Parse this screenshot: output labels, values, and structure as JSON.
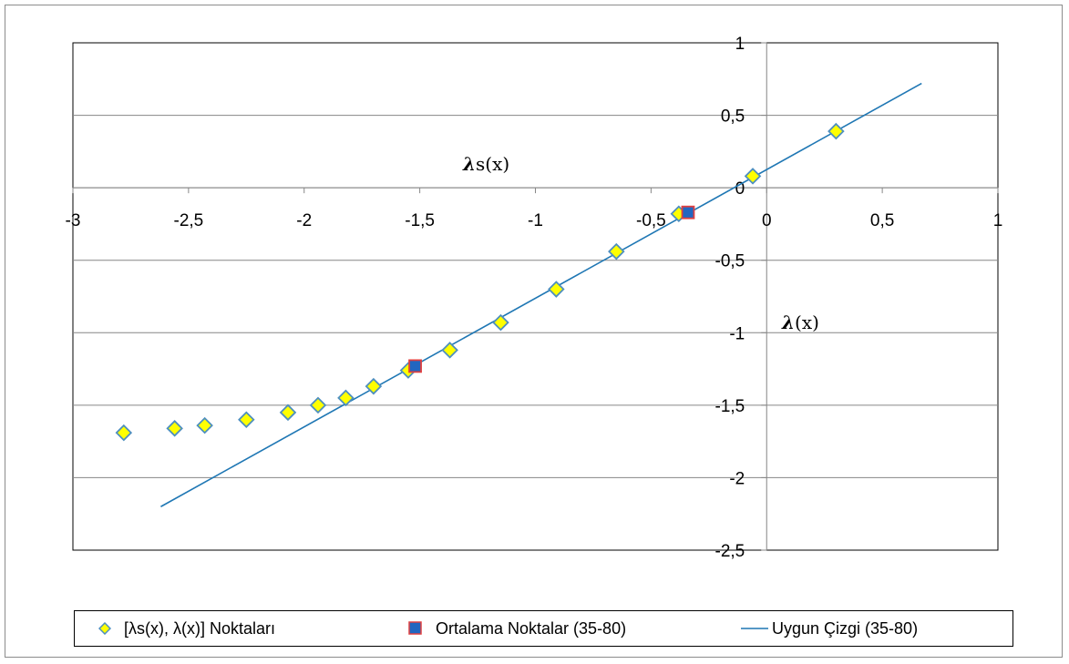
{
  "chart_data": {
    "type": "scatter",
    "title": "",
    "xlabel": "𝝀(x)",
    "ylabel": "𝝀s(x)",
    "xlim": [
      -3,
      1
    ],
    "ylim": [
      -2.5,
      1
    ],
    "x_ticks": [
      "-3",
      "-2,5",
      "-2",
      "-1,5",
      "-1",
      "-0,5",
      "0",
      "0,5",
      "1"
    ],
    "y_ticks": [
      "1",
      "0,5",
      "0",
      "-0,5",
      "-1",
      "-1,5",
      "-2",
      "-2,5"
    ],
    "grid": "horizontal",
    "legend_position": "bottom",
    "colors": {
      "points": "#ffff00",
      "points_stroke": "#4e8fbf",
      "means": "#2266c0",
      "means_stroke": "#e04040",
      "line": "#1f77b4"
    },
    "series": [
      {
        "name": "[λs(x), λ(x)] Noktaları",
        "marker": "diamond",
        "points": [
          [
            -2.78,
            -1.69
          ],
          [
            -2.56,
            -1.66
          ],
          [
            -2.43,
            -1.64
          ],
          [
            -2.25,
            -1.6
          ],
          [
            -2.07,
            -1.55
          ],
          [
            -1.94,
            -1.5
          ],
          [
            -1.82,
            -1.45
          ],
          [
            -1.7,
            -1.37
          ],
          [
            -1.55,
            -1.26
          ],
          [
            -1.37,
            -1.12
          ],
          [
            -1.15,
            -0.93
          ],
          [
            -0.91,
            -0.7
          ],
          [
            -0.65,
            -0.44
          ],
          [
            -0.38,
            -0.18
          ],
          [
            -0.06,
            0.08
          ],
          [
            0.3,
            0.39
          ]
        ]
      },
      {
        "name": "Ortalama Noktalar (35-80)",
        "marker": "square",
        "points": [
          [
            -1.52,
            -1.23
          ],
          [
            -0.34,
            -0.17
          ]
        ]
      },
      {
        "name": "Uygun Çizgi (35-80)",
        "marker": "line",
        "points": [
          [
            -2.62,
            -2.2
          ],
          [
            0.67,
            0.72
          ]
        ]
      }
    ]
  },
  "legend": {
    "items": [
      "[λs(x), λ(x)] Noktaları",
      "Ortalama Noktalar (35-80)",
      "Uygun Çizgi (35-80)"
    ]
  }
}
